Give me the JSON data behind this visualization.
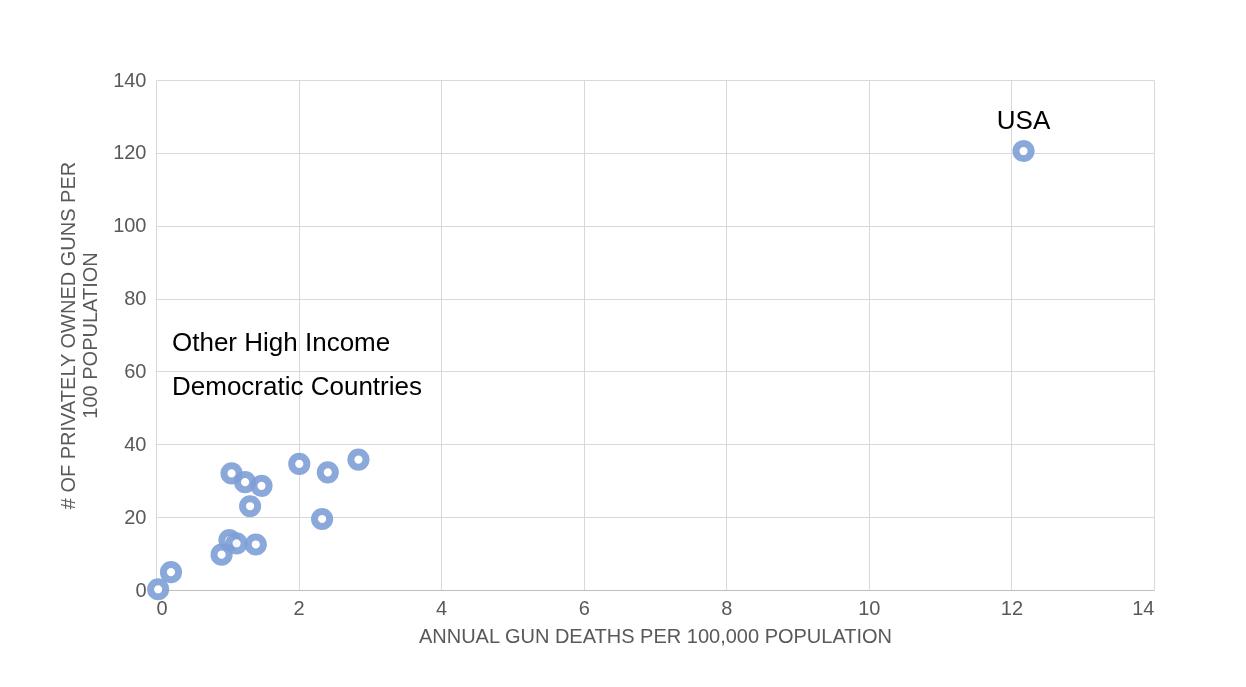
{
  "chart_data": {
    "type": "scatter",
    "xlabel": "ANNUAL GUN DEATHS PER 100,000 POPULATION",
    "ylabel": "# OF PRIVATELY OWNED GUNS PER 100 POPULATION",
    "x": [
      0.03,
      0.21,
      0.92,
      1.03,
      1.13,
      1.4,
      1.06,
      1.25,
      1.48,
      1.32,
      2.01,
      2.41,
      2.84,
      2.33,
      12.17
    ],
    "values": [
      0.2,
      4.9,
      9.7,
      13.7,
      12.8,
      12.5,
      32.0,
      29.6,
      28.6,
      23.0,
      34.6,
      32.3,
      35.8,
      19.5,
      120.5
    ],
    "color": "#7f9fd6",
    "marker": "circle",
    "xlim": [
      0,
      14
    ],
    "xticks": [
      0,
      2,
      4,
      6,
      8,
      10,
      12,
      14
    ],
    "ylim": [
      0,
      140
    ],
    "yticks": [
      0,
      20,
      40,
      60,
      80,
      100,
      120,
      140
    ],
    "grid": true,
    "annotations": [
      {
        "text": "USA",
        "x": 12.17,
        "y": 120.5
      },
      "Other High Income Democratic Countries"
    ]
  }
}
